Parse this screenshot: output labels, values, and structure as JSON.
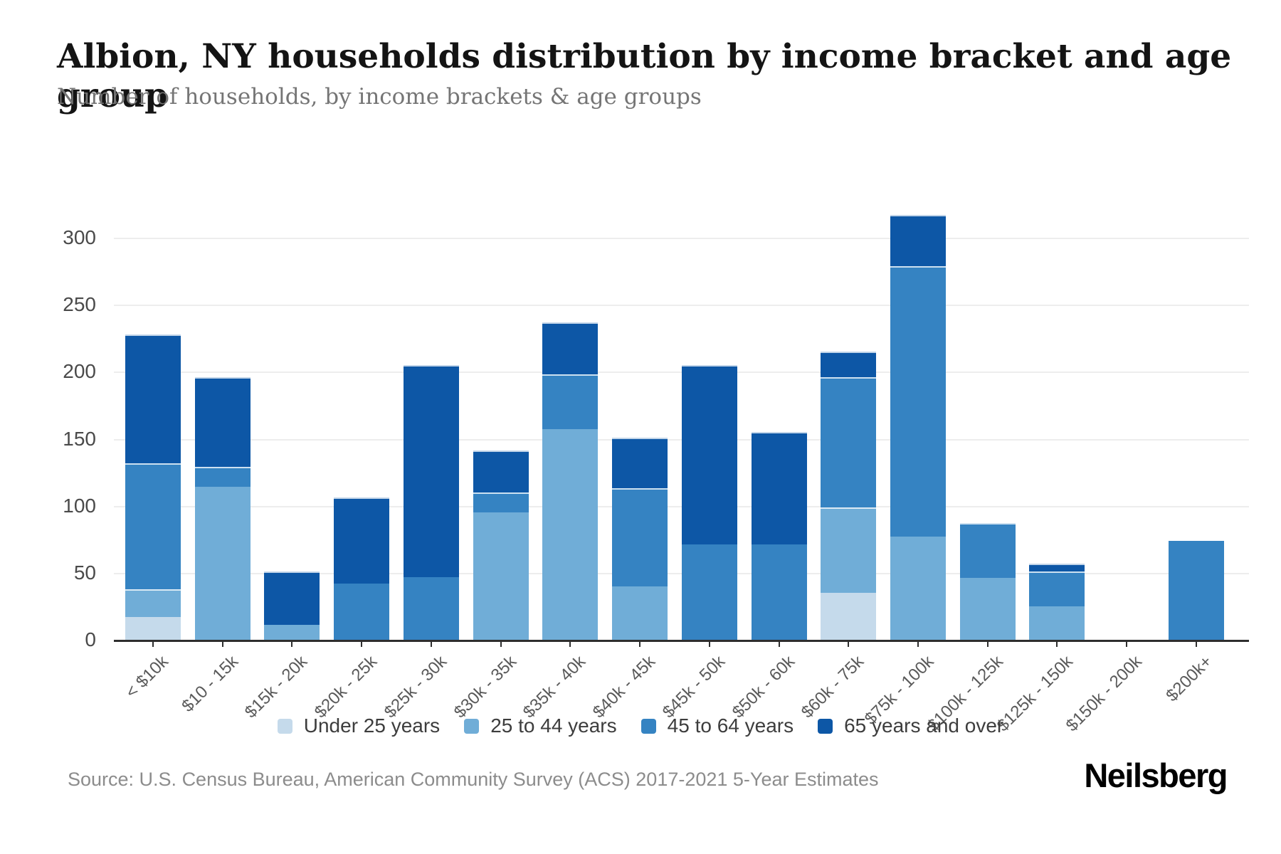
{
  "header": {
    "title": "Albion, NY households distribution by income bracket and age group",
    "subtitle": "Number of households, by income brackets & age groups"
  },
  "footer": {
    "source": "Source: U.S. Census Bureau, American Community Survey (ACS) 2017-2021 5-Year Estimates",
    "brand": "Neilsberg"
  },
  "chart_data": {
    "type": "bar",
    "stacked": true,
    "title": "Albion, NY households distribution by income bracket and age group",
    "subtitle": "Number of households, by income brackets & age groups",
    "xlabel": "",
    "ylabel": "",
    "categories": [
      "< $10k",
      "$10 - 15k",
      "$15k - 20k",
      "$20k - 25k",
      "$25k - 30k",
      "$30k - 35k",
      "$35k - 40k",
      "$40k - 45k",
      "$45k - 50k",
      "$50k - 60k",
      "$60k - 75k",
      "$75k - 100k",
      "$100k - 125k",
      "$125k - 150k",
      "$150k - 200k",
      "$200k+"
    ],
    "series": [
      {
        "name": "Under 25 years",
        "color": "#c5daeb",
        "values": [
          17,
          0,
          0,
          0,
          0,
          0,
          0,
          0,
          0,
          0,
          35,
          0,
          0,
          0,
          0,
          0
        ]
      },
      {
        "name": "25 to 44 years",
        "color": "#70add7",
        "values": [
          21,
          114,
          11,
          0,
          0,
          95,
          157,
          40,
          0,
          0,
          64,
          77,
          46,
          25,
          0,
          0
        ]
      },
      {
        "name": "45 to 64 years",
        "color": "#3583c2",
        "values": [
          94,
          15,
          0,
          42,
          47,
          15,
          41,
          73,
          71,
          71,
          97,
          202,
          41,
          26,
          0,
          74
        ]
      },
      {
        "name": "65 years and over",
        "color": "#0d57a6",
        "values": [
          96,
          67,
          40,
          64,
          158,
          31,
          39,
          38,
          134,
          84,
          19,
          38,
          0,
          6,
          0,
          0
        ]
      }
    ],
    "totals": [
      228,
      196,
      51,
      106,
      205,
      141,
      237,
      151,
      205,
      155,
      215,
      317,
      87,
      57,
      0,
      74
    ],
    "yticks": [
      0,
      50,
      100,
      150,
      200,
      250,
      300
    ],
    "ylim": [
      0,
      318
    ],
    "grid": true,
    "legend_position": "bottom"
  }
}
